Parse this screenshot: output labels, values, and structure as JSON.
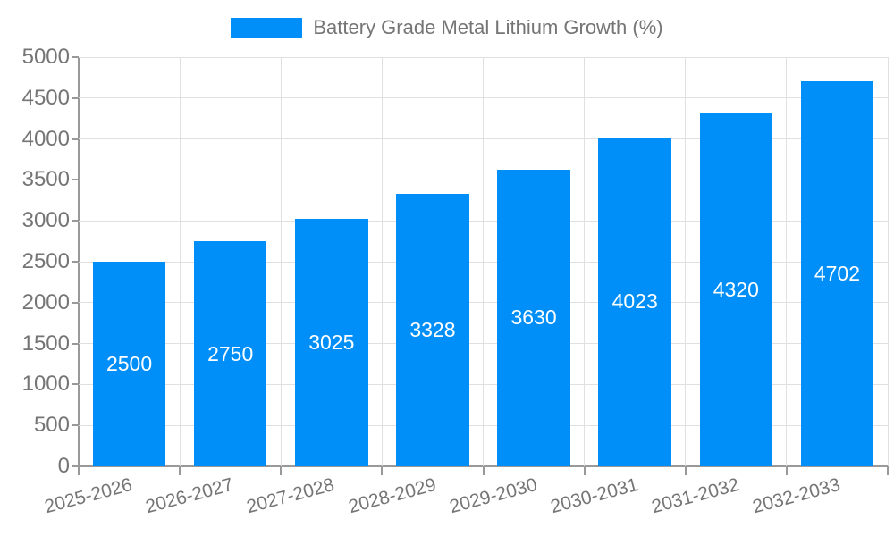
{
  "chart": {
    "legend": {
      "label": "Battery Grade Metal Lithium Growth (%)",
      "swatch_color": "#008ff8",
      "position": "top-center"
    }
  },
  "chart_data": {
    "type": "bar",
    "title": "",
    "series_name": "Battery Grade Metal Lithium Growth (%)",
    "categories": [
      "2025-2026",
      "2026-2027",
      "2027-2028",
      "2028-2029",
      "2029-2030",
      "2030-2031",
      "2031-2032",
      "2032-2033"
    ],
    "values": [
      2500,
      2750,
      3025,
      3328,
      3630,
      4023,
      4320,
      4702
    ],
    "value_labels": [
      "2500",
      "2750",
      "3025",
      "3328",
      "3630",
      "4023",
      "4320",
      "4702"
    ],
    "xlabel": "",
    "ylabel": "",
    "ylim": [
      0,
      5000
    ],
    "yticks": [
      0,
      500,
      1000,
      1500,
      2000,
      2500,
      3000,
      3500,
      4000,
      4500,
      5000
    ],
    "ytick_labels": [
      "0",
      "500",
      "1000",
      "1500",
      "2000",
      "2500",
      "3000",
      "3500",
      "4000",
      "4500",
      "5000"
    ],
    "grid": "horizontal-and-vertical",
    "x_label_rotation_deg": -15,
    "bar_label_position": "inside-center",
    "legend_position": "top-center",
    "colors": {
      "bar": "#008ff8",
      "bar_label": "#ffffff",
      "axis_line": "#999999",
      "grid_line": "#e0e0e0",
      "tick_text": "#757575",
      "background": "#ffffff"
    }
  }
}
